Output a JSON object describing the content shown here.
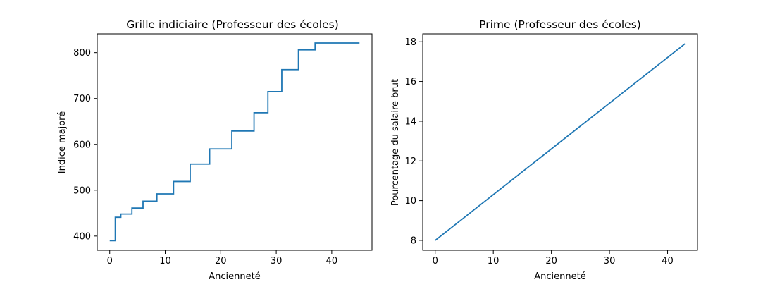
{
  "chart_data": [
    {
      "type": "line",
      "drawstyle": "steps-post",
      "title": "Grille indiciaire (Professeur des écoles)",
      "xlabel": "Ancienneté",
      "ylabel": "Indice majoré",
      "xlim": [
        -2.25,
        47.25
      ],
      "ylim": [
        369,
        841
      ],
      "xticks": [
        0,
        10,
        20,
        30,
        40
      ],
      "yticks": [
        400,
        500,
        600,
        700,
        800
      ],
      "grid": false,
      "color": "#1f77b4",
      "series": [
        {
          "x": [
            0,
            1,
            2,
            4,
            6,
            8.5,
            11.5,
            14.5,
            18,
            22,
            26,
            28.5,
            31,
            34,
            37,
            45
          ],
          "y": [
            390,
            441,
            448,
            461,
            476,
            492,
            519,
            557,
            590,
            629,
            669,
            715,
            763,
            806,
            821,
            821
          ]
        }
      ]
    },
    {
      "type": "line",
      "title": "Prime (Professeur des écoles)",
      "xlabel": "Ancienneté",
      "ylabel": "Pourcentage du salaire brut",
      "xlim": [
        -2.15,
        45.15
      ],
      "ylim": [
        7.5,
        18.4
      ],
      "xticks": [
        0,
        10,
        20,
        30,
        40
      ],
      "yticks": [
        8,
        10,
        12,
        14,
        16,
        18
      ],
      "grid": false,
      "color": "#1f77b4",
      "series": [
        {
          "x": [
            0,
            43
          ],
          "y": [
            8.0,
            17.9
          ]
        }
      ]
    }
  ]
}
